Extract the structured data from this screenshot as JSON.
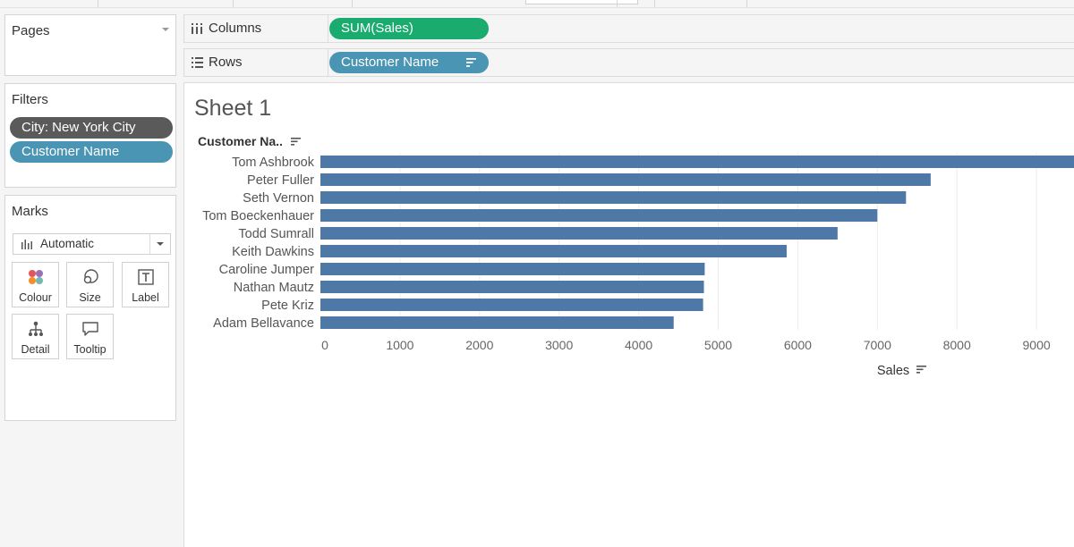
{
  "pages": {
    "title": "Pages"
  },
  "filters": {
    "title": "Filters",
    "items": [
      "City: New York City",
      "Customer Name"
    ]
  },
  "marks": {
    "title": "Marks",
    "type": "Automatic",
    "buttons": [
      {
        "label": "Colour",
        "icon": "colour-icon"
      },
      {
        "label": "Size",
        "icon": "size-icon"
      },
      {
        "label": "Label",
        "icon": "label-icon"
      },
      {
        "label": "Detail",
        "icon": "detail-icon"
      },
      {
        "label": "Tooltip",
        "icon": "tooltip-icon"
      }
    ]
  },
  "shelves": {
    "columns": {
      "label": "Columns",
      "pill": "SUM(Sales)"
    },
    "rows": {
      "label": "Rows",
      "pill": "Customer Name"
    }
  },
  "sheet": {
    "title": "Sheet 1"
  },
  "colors": {
    "bar": "#4e79a7",
    "pill_green": "#1aab6e",
    "pill_blue": "#4a95b3",
    "pill_grey": "#5a5a5a"
  },
  "chart_data": {
    "type": "bar",
    "orientation": "horizontal",
    "categories": [
      "Tom Ashbrook",
      "Peter Fuller",
      "Seth Vernon",
      "Tom Boeckenhauer",
      "Todd Sumrall",
      "Keith Dawkins",
      "Caroline Jumper",
      "Nathan Mautz",
      "Pete Kriz",
      "Adam Bellavance"
    ],
    "values": [
      9500,
      7670,
      7360,
      7000,
      6500,
      5860,
      4830,
      4820,
      4810,
      4440
    ],
    "xticks": [
      0,
      1000,
      2000,
      3000,
      4000,
      5000,
      6000,
      7000,
      8000,
      9000
    ],
    "xlim": [
      0,
      9500
    ],
    "xlabel": "Sales",
    "ylabel": "Customer Na..",
    "grid": true
  }
}
